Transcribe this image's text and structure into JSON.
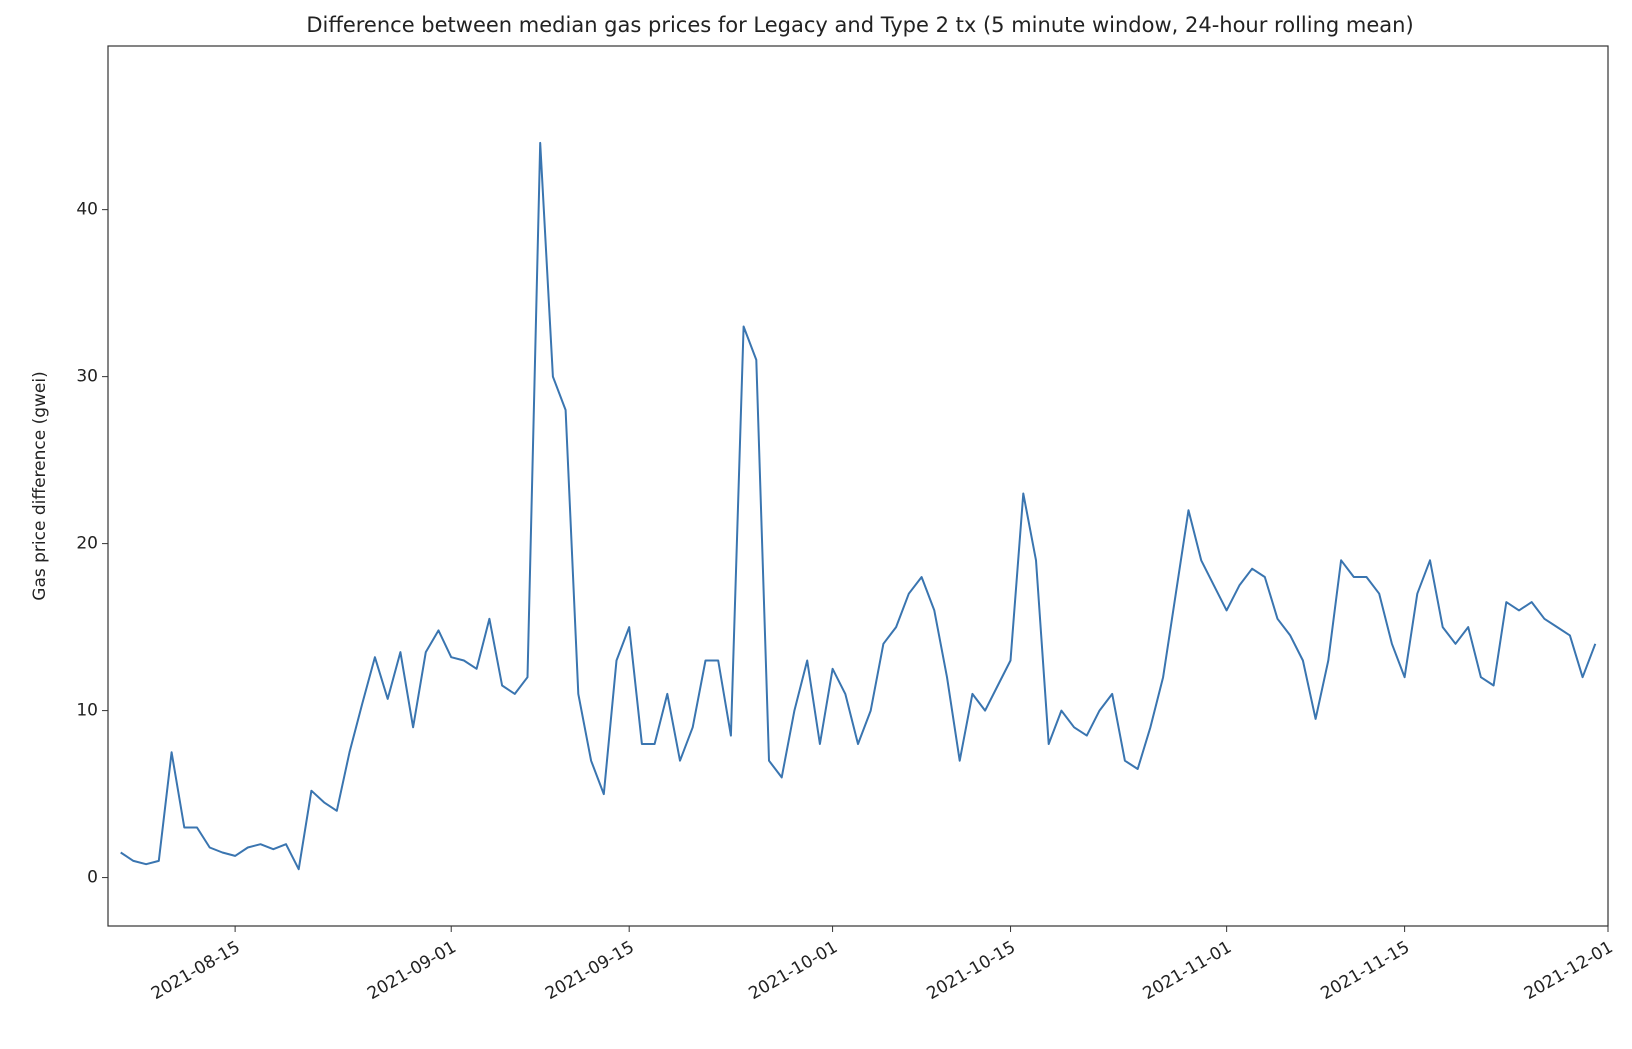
{
  "chart_data": {
    "type": "line",
    "title": "Difference between median gas prices for Legacy and Type 2 tx (5 minute window, 24-hour rolling mean)",
    "y_label": "Gas price difference (gwei)",
    "x": [
      "2021-08-06",
      "2021-08-07",
      "2021-08-08",
      "2021-08-09",
      "2021-08-10",
      "2021-08-11",
      "2021-08-12",
      "2021-08-13",
      "2021-08-14",
      "2021-08-15",
      "2021-08-16",
      "2021-08-17",
      "2021-08-18",
      "2021-08-19",
      "2021-08-20",
      "2021-08-21",
      "2021-08-22",
      "2021-08-23",
      "2021-08-24",
      "2021-08-25",
      "2021-08-26",
      "2021-08-27",
      "2021-08-28",
      "2021-08-29",
      "2021-08-30",
      "2021-08-31",
      "2021-09-01",
      "2021-09-02",
      "2021-09-03",
      "2021-09-04",
      "2021-09-05",
      "2021-09-06",
      "2021-09-07",
      "2021-09-08",
      "2021-09-09",
      "2021-09-10",
      "2021-09-11",
      "2021-09-12",
      "2021-09-13",
      "2021-09-14",
      "2021-09-15",
      "2021-09-16",
      "2021-09-17",
      "2021-09-18",
      "2021-09-19",
      "2021-09-20",
      "2021-09-21",
      "2021-09-22",
      "2021-09-23",
      "2021-09-24",
      "2021-09-25",
      "2021-09-26",
      "2021-09-27",
      "2021-09-28",
      "2021-09-29",
      "2021-09-30",
      "2021-10-01",
      "2021-10-02",
      "2021-10-03",
      "2021-10-04",
      "2021-10-05",
      "2021-10-06",
      "2021-10-07",
      "2021-10-08",
      "2021-10-09",
      "2021-10-10",
      "2021-10-11",
      "2021-10-12",
      "2021-10-13",
      "2021-10-14",
      "2021-10-15",
      "2021-10-16",
      "2021-10-17",
      "2021-10-18",
      "2021-10-19",
      "2021-10-20",
      "2021-10-21",
      "2021-10-22",
      "2021-10-23",
      "2021-10-24",
      "2021-10-25",
      "2021-10-26",
      "2021-10-27",
      "2021-10-28",
      "2021-10-29",
      "2021-10-30",
      "2021-10-31",
      "2021-11-01",
      "2021-11-02",
      "2021-11-03",
      "2021-11-04",
      "2021-11-05",
      "2021-11-06",
      "2021-11-07",
      "2021-11-08",
      "2021-11-09",
      "2021-11-10",
      "2021-11-11",
      "2021-11-12",
      "2021-11-13",
      "2021-11-14",
      "2021-11-15",
      "2021-11-16",
      "2021-11-17",
      "2021-11-18",
      "2021-11-19",
      "2021-11-20",
      "2021-11-21",
      "2021-11-22",
      "2021-11-23",
      "2021-11-24",
      "2021-11-25",
      "2021-11-26",
      "2021-11-27",
      "2021-11-28",
      "2021-11-29",
      "2021-11-30"
    ],
    "series": [
      {
        "name": "Gas price difference",
        "color": "#3a75b0",
        "values": [
          1.5,
          1.0,
          0.8,
          1.0,
          7.5,
          3.0,
          3.0,
          1.8,
          1.5,
          1.3,
          1.8,
          2.0,
          1.7,
          2.0,
          0.5,
          5.2,
          4.5,
          4.0,
          7.5,
          10.4,
          13.2,
          10.7,
          13.5,
          9.0,
          13.5,
          14.8,
          13.2,
          13.0,
          12.5,
          15.5,
          11.5,
          11.0,
          12.0,
          44.0,
          30.0,
          28.0,
          11.0,
          7.0,
          5.0,
          13.0,
          15.0,
          8.0,
          8.0,
          11.0,
          7.0,
          9.0,
          13.0,
          13.0,
          8.5,
          33.0,
          31.0,
          7.0,
          6.0,
          10.0,
          13.0,
          8.0,
          12.5,
          11.0,
          8.0,
          10.0,
          14.0,
          15.0,
          17.0,
          18.0,
          16.0,
          12.0,
          7.0,
          11.0,
          10.0,
          11.5,
          13.0,
          23.0,
          19.0,
          8.0,
          10.0,
          9.0,
          8.5,
          10.0,
          11.0,
          7.0,
          6.5,
          9.0,
          12.0,
          17.0,
          22.0,
          19.0,
          17.5,
          16.0,
          17.5,
          18.5,
          18.0,
          15.5,
          14.5,
          13.0,
          9.5,
          13.0,
          19.0,
          18.0,
          18.0,
          17.0,
          14.0,
          12.0,
          17.0,
          19.0,
          15.0,
          14.0,
          15.0,
          12.0,
          11.5,
          16.5,
          16.0,
          16.5,
          15.5,
          15.0,
          14.5,
          12.0,
          14.0
        ]
      }
    ],
    "xlim": [
      "2021-08-05",
      "2021-12-01"
    ],
    "xticks": [
      "2021-08-15",
      "2021-09-01",
      "2021-09-15",
      "2021-10-01",
      "2021-10-15",
      "2021-11-01",
      "2021-11-15",
      "2021-12-01"
    ],
    "ylim": [
      -2.9,
      49.8
    ],
    "yticks": [
      0,
      10,
      20,
      30,
      40
    ],
    "grid": false
  }
}
